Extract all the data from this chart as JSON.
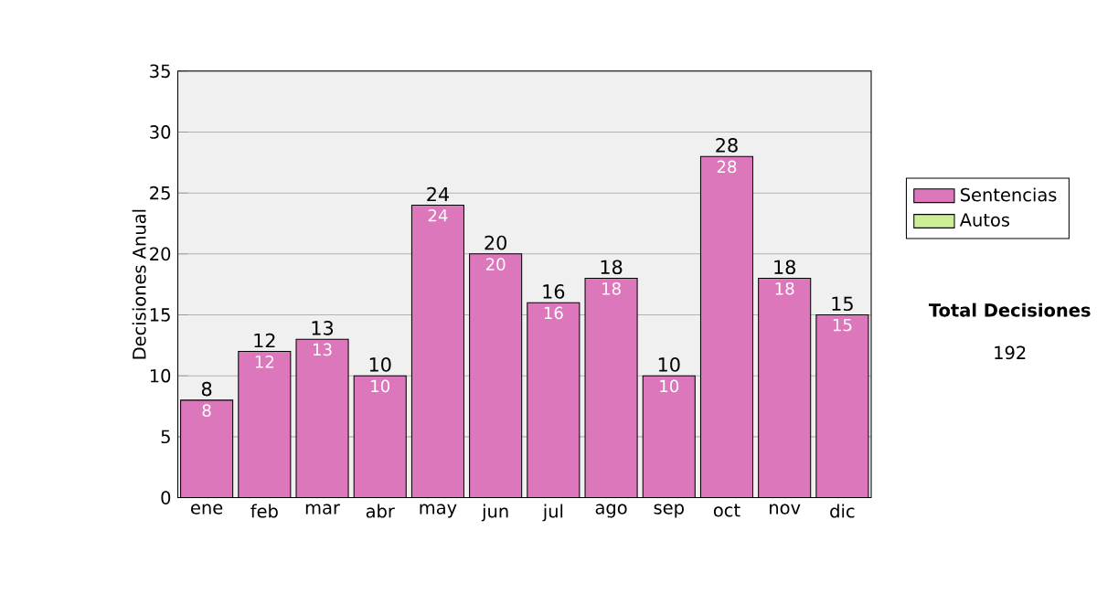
{
  "chart_data": {
    "type": "bar",
    "stacked": true,
    "ylabel": "Decisiones Anual",
    "categories": [
      "ene",
      "feb",
      "mar",
      "abr",
      "may",
      "jun",
      "jul",
      "ago",
      "sep",
      "oct",
      "nov",
      "dic"
    ],
    "series": [
      {
        "name": "Sentencias",
        "color": "#dd77bb",
        "values": [
          8,
          12,
          13,
          10,
          24,
          20,
          16,
          18,
          10,
          28,
          18,
          15
        ],
        "value_labels": [
          "8",
          "12",
          "13",
          "10",
          "24",
          "20",
          "16",
          "18",
          "10",
          "28",
          "18",
          "15"
        ]
      },
      {
        "name": "Autos",
        "color": "#ccee99",
        "values": [
          0,
          0,
          0,
          0,
          0,
          0,
          0,
          0,
          0,
          0,
          0,
          0
        ]
      }
    ],
    "totals": [
      "8",
      "12",
      "13",
      "10",
      "24",
      "20",
      "16",
      "18",
      "10",
      "28",
      "18",
      "15"
    ],
    "ylim": [
      0,
      35
    ],
    "yticks": [
      0,
      5,
      10,
      15,
      20,
      25,
      30,
      35
    ],
    "grid": "y",
    "legend": "right",
    "annotations": [
      "Total Decisiones",
      "192"
    ]
  }
}
